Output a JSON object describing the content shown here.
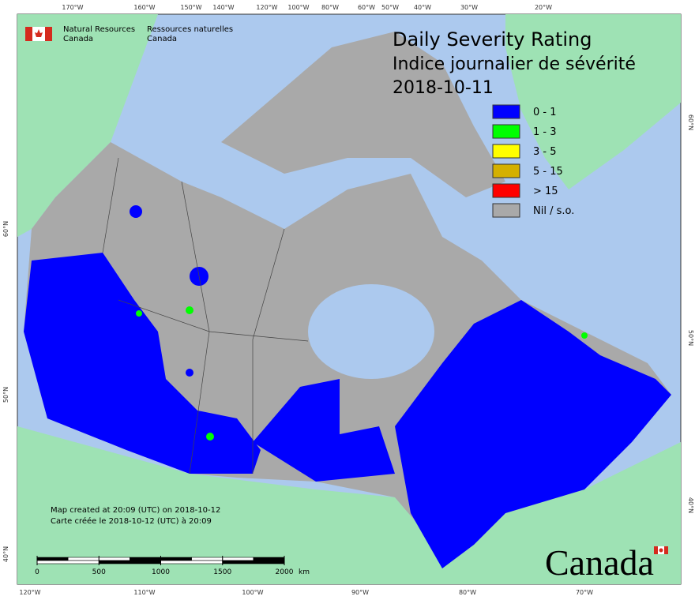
{
  "header": {
    "agency_en": [
      "Natural Resources",
      "Canada"
    ],
    "agency_fr": [
      "Ressources naturelles",
      "Canada"
    ]
  },
  "title": [
    "Daily Severity Rating",
    "Indice journalier de sévérité",
    "2018-10-11"
  ],
  "legend": [
    {
      "label": "0 - 1",
      "color": "#0000ff"
    },
    {
      "label": "1 - 3",
      "color": "#00ff00"
    },
    {
      "label": "3 - 5",
      "color": "#ffff00"
    },
    {
      "label": "5 - 15",
      "color": "#d4b000"
    },
    {
      "label": "> 15",
      "color": "#ff0000"
    },
    {
      "label": "Nil / s.o.",
      "color": "#a9a9a9"
    }
  ],
  "graticule": {
    "top": [
      "170°W",
      "160°W",
      "150°W",
      "140°W",
      "120°W",
      "100°W",
      "80°W",
      "60°W",
      "50°W",
      "40°W",
      "30°W",
      "20°W"
    ],
    "bottom": [
      "120°W",
      "110°W",
      "100°W",
      "90°W",
      "80°W",
      "70°W"
    ],
    "left": [
      "60°N",
      "50°N",
      "40°N"
    ],
    "right": [
      "60°N",
      "50°N",
      "40°N"
    ]
  },
  "footer": [
    "Map created at 20:09 (UTC) on 2018-10-12",
    "Carte créée le 2018-10-12 (UTC) à 20:09"
  ],
  "scale": {
    "ticks": [
      0,
      500,
      1000,
      1500,
      2000
    ],
    "unit": "km"
  },
  "wordmark": "Canada"
}
